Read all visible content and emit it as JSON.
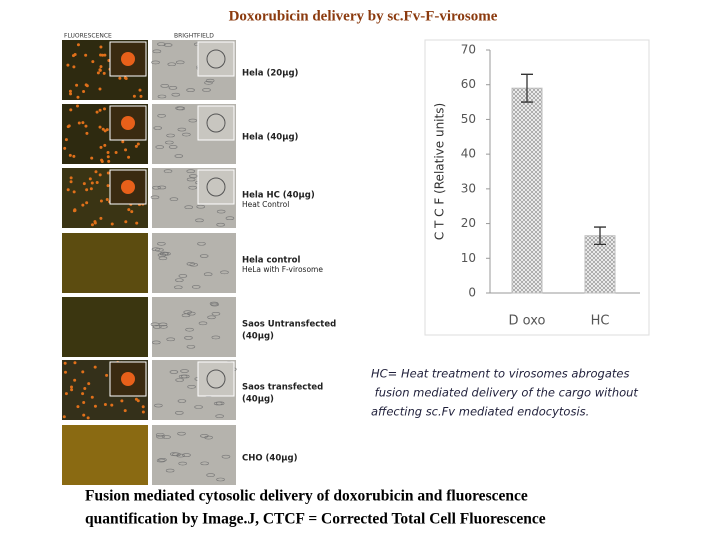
{
  "title": "Doxorubicin delivery by sc.Fv-F-virosome",
  "panel": {
    "headers": [
      "FLUORESCENCE",
      "BRIGHTFIELD"
    ],
    "rows": [
      {
        "lines": [
          "Hela (20μg)"
        ]
      },
      {
        "lines": [
          "Hela (40μg)"
        ]
      },
      {
        "lines": [
          "Hela HC (40μg)",
          "Heat Control"
        ]
      },
      {
        "lines": [
          "Hela control",
          "HeLa with F-virosome"
        ]
      },
      {
        "lines": [
          "Saos Untransfected",
          "(40μg)"
        ]
      },
      {
        "lines": [
          "Saos transfected",
          "(40μg)"
        ]
      },
      {
        "lines": [
          "CHO (40μg)"
        ]
      }
    ]
  },
  "chart_data": {
    "type": "bar",
    "ylabel": "C T C F (Relative units)",
    "categories": [
      "D oxo",
      "HC"
    ],
    "values": [
      59,
      16.5
    ],
    "errors": [
      4,
      2.5
    ],
    "color": "#bdbdbd",
    "ylim": [
      0,
      70
    ],
    "yticks": [
      0,
      10,
      20,
      30,
      40,
      50,
      60,
      70
    ]
  },
  "note": [
    "HC= Heat treatment to virosomes abrogates",
    " fusion mediated delivery of the cargo without",
    "affecting sc.Fv mediated endocytosis."
  ],
  "caption": [
    "Fusion mediated cytosolic delivery of  doxorubicin and fluorescence",
    "quantification by Image.J, CTCF = Corrected Total Cell Fluorescence"
  ]
}
